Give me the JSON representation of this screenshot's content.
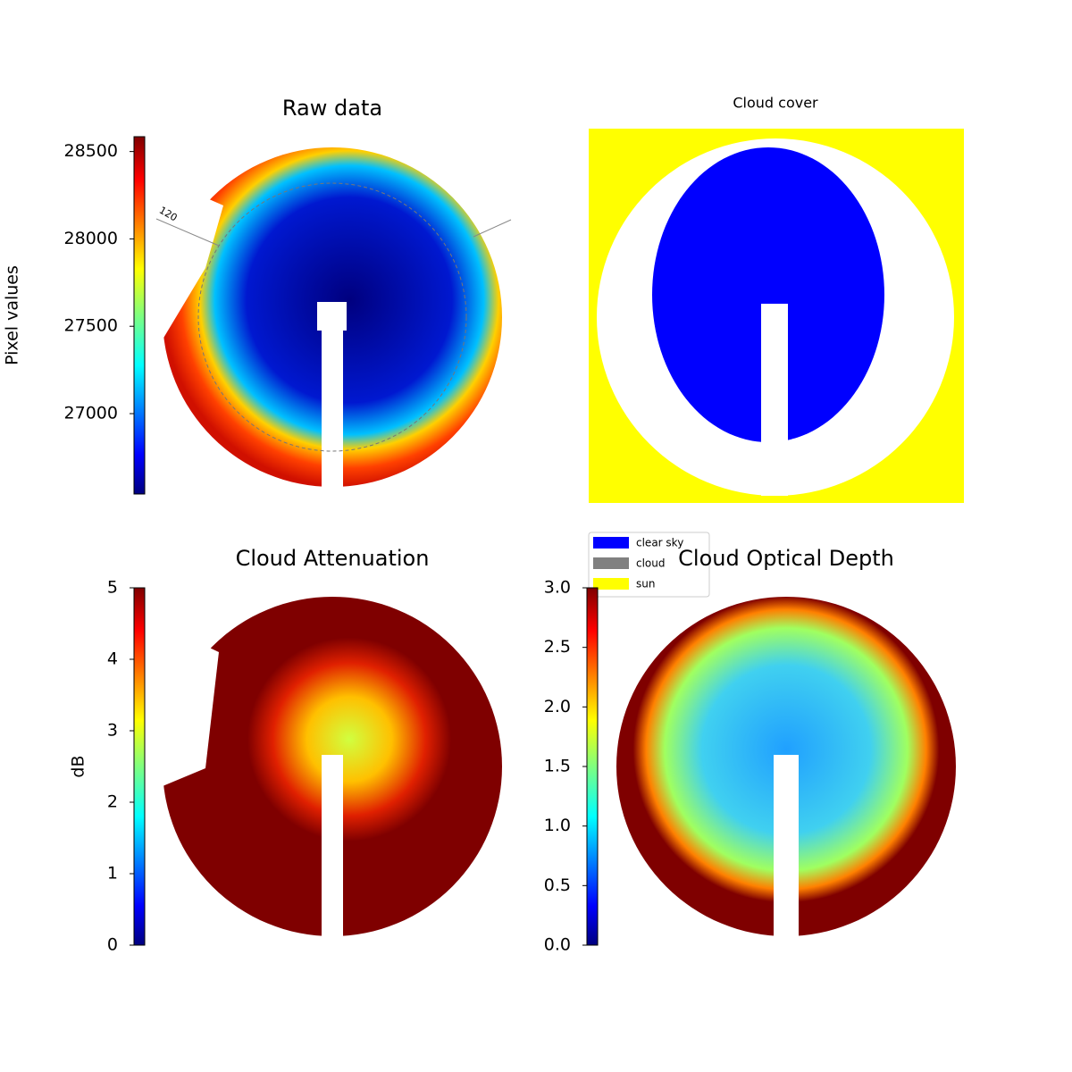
{
  "chart_data": [
    {
      "type": "image",
      "title": "Raw data",
      "annotation": "120",
      "colorbar": {
        "label": "Pixel values",
        "colormap": "jet",
        "lim": [
          26540,
          28585
        ],
        "ticks": [
          27000,
          27500,
          28000,
          28500
        ]
      }
    },
    {
      "type": "image",
      "title": "Cloud cover",
      "legend": [
        {
          "name": "clear sky",
          "color": "#0000ff"
        },
        {
          "name": "cloud",
          "color": "#808080"
        },
        {
          "name": "sun",
          "color": "#ffff00"
        }
      ]
    },
    {
      "type": "image",
      "title": "Cloud Attenuation",
      "colorbar": {
        "label": "dB",
        "colormap": "jet",
        "lim": [
          0,
          5
        ],
        "ticks": [
          0,
          1,
          2,
          3,
          4,
          5
        ]
      }
    },
    {
      "type": "image",
      "title": "Cloud Optical Depth",
      "colorbar": {
        "colormap": "jet",
        "lim": [
          0,
          3
        ],
        "ticks": [
          {
            "value": 0,
            "label": "0.0"
          },
          {
            "value": 0.5,
            "label": "0.5"
          },
          {
            "value": 1,
            "label": "1.0"
          },
          {
            "value": 1.5,
            "label": "1.5"
          },
          {
            "value": 2,
            "label": "2.0"
          },
          {
            "value": 2.5,
            "label": "2.5"
          },
          {
            "value": 3,
            "label": "3.0"
          }
        ]
      }
    }
  ]
}
